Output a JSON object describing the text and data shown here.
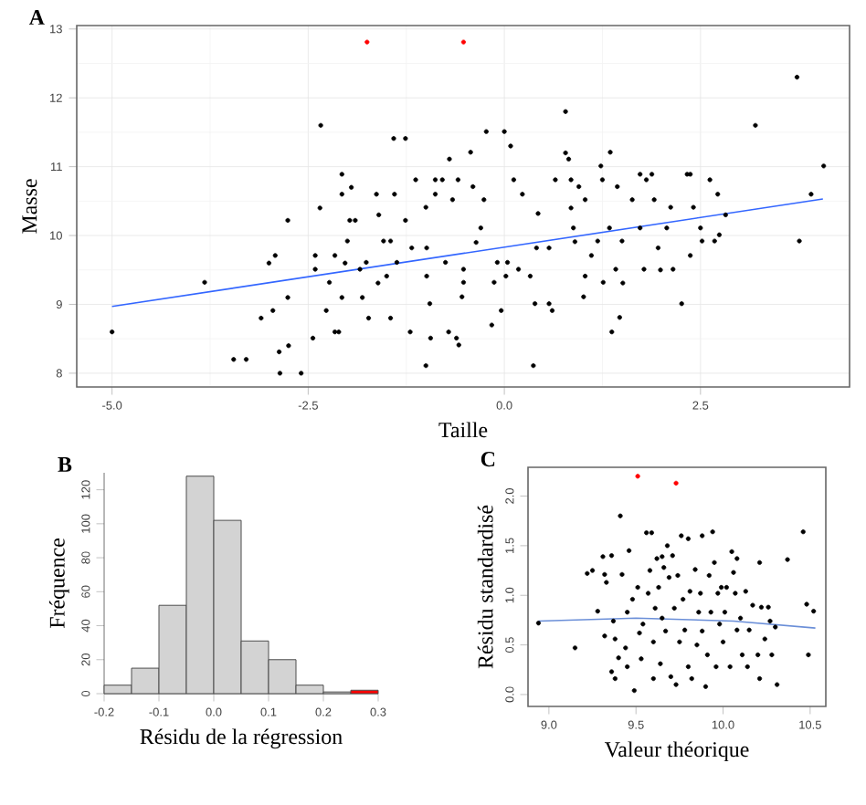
{
  "chart_data": [
    {
      "type": "scatter",
      "title": "A",
      "xlabel": "Taille",
      "ylabel": "Masse",
      "xlim": [
        -5.45,
        4.4
      ],
      "ylim": [
        7.8,
        13.05
      ],
      "xticks": [
        {
          "value": -5,
          "label": "-5.0"
        },
        {
          "value": -2.5,
          "label": "-2.5"
        },
        {
          "value": 0,
          "label": "0.0"
        },
        {
          "value": 2.5,
          "label": "2.5"
        }
      ],
      "yticks": [
        8,
        9,
        10,
        11,
        12,
        13
      ],
      "grid": true,
      "series": [
        {
          "color": "#000000",
          "x": [
            -5.0,
            -3.82,
            -3.45,
            -3.29,
            -3.1,
            -3.0,
            -2.95,
            -2.92,
            -2.87,
            -2.86,
            -2.75,
            -2.76,
            -2.76,
            -2.59,
            -2.44,
            -2.41,
            -2.41,
            -2.34,
            -2.35,
            -2.27,
            -2.23,
            -2.16,
            -2.16,
            -2.11,
            -2.07,
            -2.07,
            -1.95,
            -1.97,
            -1.9,
            -2.0,
            -2.03,
            -1.84,
            -1.81,
            -1.73,
            -1.63,
            -1.6,
            -1.54,
            -1.5,
            -1.45,
            -1.41,
            -1.4,
            -1.37,
            -1.26,
            -1.26,
            -1.2,
            -1.13,
            -1.18,
            -1.0,
            -1.0,
            -0.94,
            -0.95,
            -0.88,
            -0.88,
            -0.79,
            -0.7,
            -0.71,
            -0.66,
            -0.61,
            -0.58,
            -0.59,
            -0.54,
            -0.52,
            -0.43,
            -0.4,
            -0.3,
            -0.26,
            -0.23,
            -0.16,
            -0.09,
            -0.04,
            0.0,
            0.08,
            0.04,
            0.12,
            0.23,
            0.37,
            0.39,
            0.43,
            0.57,
            0.61,
            0.65,
            0.78,
            0.78,
            0.82,
            0.85,
            0.85,
            0.9,
            0.95,
            1.01,
            1.03,
            1.11,
            1.23,
            1.25,
            1.35,
            1.37,
            1.44,
            1.47,
            1.51,
            1.63,
            1.73,
            1.78,
            1.81,
            1.88,
            1.91,
            1.99,
            2.07,
            2.12,
            2.15,
            2.26,
            2.33,
            2.37,
            2.41,
            2.37,
            2.5,
            2.52,
            2.62,
            2.68,
            2.72,
            2.74,
            2.82,
            3.2,
            3.73,
            3.76,
            3.91,
            4.07,
            -1.76,
            -1.45,
            -0.99,
            -0.75,
            -0.36,
            -0.13,
            0.18,
            0.41,
            0.57,
            0.88,
            1.19,
            1.34,
            1.5,
            1.73,
            1.96,
            -2.07,
            -1.61,
            -0.99,
            -0.52,
            0.02,
            0.33,
            1.03,
            1.26,
            1.42
          ],
          "values": [
            8.6,
            9.32,
            8.2,
            8.2,
            8.8,
            9.6,
            8.91,
            9.71,
            8.31,
            8.0,
            8.4,
            9.1,
            10.22,
            8.0,
            8.51,
            9.71,
            9.51,
            11.6,
            10.4,
            8.91,
            9.32,
            9.71,
            8.6,
            8.6,
            10.89,
            10.6,
            10.7,
            10.22,
            10.22,
            9.92,
            9.6,
            9.51,
            9.1,
            8.8,
            10.6,
            10.3,
            9.92,
            9.41,
            8.8,
            11.41,
            10.6,
            9.61,
            11.41,
            10.22,
            8.6,
            10.81,
            9.82,
            10.41,
            8.11,
            8.51,
            9.01,
            10.6,
            10.81,
            10.81,
            11.11,
            8.6,
            10.52,
            8.51,
            8.41,
            10.81,
            9.11,
            9.51,
            11.21,
            10.71,
            10.11,
            10.52,
            11.51,
            8.7,
            9.61,
            8.91,
            11.51,
            11.3,
            9.61,
            10.81,
            10.6,
            8.11,
            9.01,
            10.32,
            9.01,
            8.91,
            10.81,
            11.8,
            11.2,
            11.11,
            10.81,
            10.4,
            9.91,
            10.71,
            9.11,
            10.52,
            9.71,
            11.01,
            10.81,
            11.21,
            8.6,
            10.71,
            8.81,
            9.31,
            10.52,
            10.89,
            9.51,
            10.81,
            10.89,
            10.52,
            9.5,
            10.11,
            10.41,
            9.51,
            9.01,
            10.89,
            10.89,
            10.41,
            9.71,
            10.11,
            9.92,
            10.81,
            9.92,
            10.6,
            10.01,
            10.3,
            11.6,
            12.3,
            9.92,
            10.6,
            11.01,
            9.61,
            9.92,
            9.82,
            9.61,
            9.9,
            9.32,
            9.51,
            9.82,
            9.82,
            10.11,
            9.92,
            10.11,
            9.92,
            10.11,
            9.82,
            9.1,
            9.31,
            9.41,
            9.32,
            9.41,
            9.41,
            9.41,
            9.32,
            9.51
          ]
        },
        {
          "color": "#ff0000",
          "x": [
            -1.75,
            -0.52
          ],
          "values": [
            12.81,
            12.81
          ]
        },
        {
          "type": "line",
          "color": "#3366ff",
          "x": [
            -5.0,
            4.06
          ],
          "values": [
            8.97,
            10.53
          ]
        }
      ]
    },
    {
      "type": "histogram",
      "title": "B",
      "xlabel": "Résidu de la régression",
      "ylabel": "Fréquence",
      "xlim": [
        -0.2,
        0.3
      ],
      "ylim": [
        0,
        130
      ],
      "xticks": [
        {
          "value": -0.2,
          "label": "-0.2"
        },
        {
          "value": -0.1,
          "label": "-0.1"
        },
        {
          "value": 0,
          "label": "0.0"
        },
        {
          "value": 0.1,
          "label": "0.1"
        },
        {
          "value": 0.2,
          "label": "0.2"
        },
        {
          "value": 0.3,
          "label": "0.3"
        }
      ],
      "yticks": [
        0,
        20,
        40,
        60,
        80,
        100,
        120
      ],
      "bins": [
        -0.2,
        -0.15,
        -0.1,
        -0.05,
        0,
        0.05,
        0.1,
        0.15,
        0.2,
        0.25,
        0.3
      ],
      "values": [
        5,
        15,
        52,
        128,
        102,
        31,
        20,
        5,
        1,
        2
      ],
      "colors": [
        "#d3d3d3",
        "#d3d3d3",
        "#d3d3d3",
        "#d3d3d3",
        "#d3d3d3",
        "#d3d3d3",
        "#d3d3d3",
        "#d3d3d3",
        "#d3d3d3",
        "#ff0000"
      ]
    },
    {
      "type": "scatter",
      "title": "C",
      "xlabel": "Valeur théorique",
      "ylabel": "Résidu standardisé",
      "xlim": [
        8.88,
        10.59
      ],
      "ylim": [
        -0.12,
        2.29
      ],
      "xticks": [
        {
          "value": 9,
          "label": "9.0"
        },
        {
          "value": 9.5,
          "label": "9.5"
        },
        {
          "value": 10,
          "label": "10.0"
        },
        {
          "value": 10.5,
          "label": "10.5"
        }
      ],
      "yticks": [
        {
          "value": 0,
          "label": "0.0"
        },
        {
          "value": 0.5,
          "label": "0.5"
        },
        {
          "value": 1,
          "label": "1.0"
        },
        {
          "value": 1.5,
          "label": "1.5"
        },
        {
          "value": 2,
          "label": "2.0"
        }
      ],
      "series": [
        {
          "color": "#000000",
          "x": [
            8.94,
            9.15,
            9.22,
            9.25,
            9.28,
            9.31,
            9.32,
            9.32,
            9.33,
            9.36,
            9.37,
            9.36,
            9.38,
            9.38,
            9.4,
            9.41,
            9.42,
            9.44,
            9.45,
            9.45,
            9.46,
            9.48,
            9.49,
            9.51,
            9.52,
            9.53,
            9.54,
            9.56,
            9.57,
            9.58,
            9.59,
            9.6,
            9.6,
            9.61,
            9.62,
            9.63,
            9.64,
            9.65,
            9.65,
            9.66,
            9.67,
            9.68,
            9.69,
            9.7,
            9.71,
            9.72,
            9.73,
            9.74,
            9.75,
            9.76,
            9.77,
            9.78,
            9.8,
            9.8,
            9.81,
            9.82,
            9.84,
            9.85,
            9.86,
            9.87,
            9.88,
            9.88,
            9.9,
            9.91,
            9.92,
            9.93,
            9.94,
            9.95,
            9.96,
            9.97,
            9.98,
            9.99,
            10.0,
            10.01,
            10.02,
            10.04,
            10.05,
            10.06,
            10.07,
            10.08,
            10.08,
            10.1,
            10.11,
            10.13,
            10.14,
            10.15,
            10.17,
            10.2,
            10.21,
            10.21,
            10.22,
            10.24,
            10.26,
            10.27,
            10.28,
            10.3,
            10.31,
            10.37,
            10.46,
            10.48,
            10.49,
            10.52
          ],
          "values": [
            0.72,
            0.47,
            1.22,
            1.25,
            0.84,
            1.39,
            1.21,
            0.59,
            1.13,
            1.4,
            0.74,
            0.23,
            0.16,
            0.56,
            0.37,
            1.8,
            1.21,
            0.47,
            0.28,
            0.83,
            1.45,
            0.96,
            0.04,
            1.08,
            0.62,
            0.36,
            0.71,
            1.63,
            1.02,
            1.25,
            1.63,
            0.16,
            0.53,
            0.87,
            1.37,
            1.08,
            0.31,
            1.39,
            0.77,
            1.28,
            0.64,
            1.5,
            1.18,
            0.18,
            1.4,
            0.87,
            0.1,
            1.2,
            0.53,
            1.6,
            0.96,
            0.65,
            0.28,
            1.57,
            1.04,
            0.16,
            1.26,
            0.5,
            0.83,
            1.02,
            1.6,
            0.64,
            0.08,
            0.4,
            1.2,
            0.83,
            1.64,
            1.33,
            0.28,
            1.02,
            0.71,
            1.08,
            0.53,
            0.83,
            1.08,
            0.28,
            1.44,
            1.23,
            1.02,
            0.65,
            1.37,
            0.77,
            0.4,
            1.04,
            0.28,
            0.65,
            0.9,
            0.4,
            1.33,
            0.16,
            0.88,
            0.56,
            0.88,
            0.74,
            0.4,
            0.68,
            0.1,
            1.36,
            1.64,
            0.91,
            0.4,
            0.84
          ]
        },
        {
          "color": "#ff0000",
          "x": [
            9.51,
            9.73
          ],
          "values": [
            2.2,
            2.13
          ]
        },
        {
          "type": "line",
          "color": "#6b8fd8",
          "x": [
            8.94,
            9.5,
            10.06,
            10.53
          ],
          "values": [
            0.74,
            0.77,
            0.74,
            0.67
          ]
        }
      ]
    }
  ]
}
